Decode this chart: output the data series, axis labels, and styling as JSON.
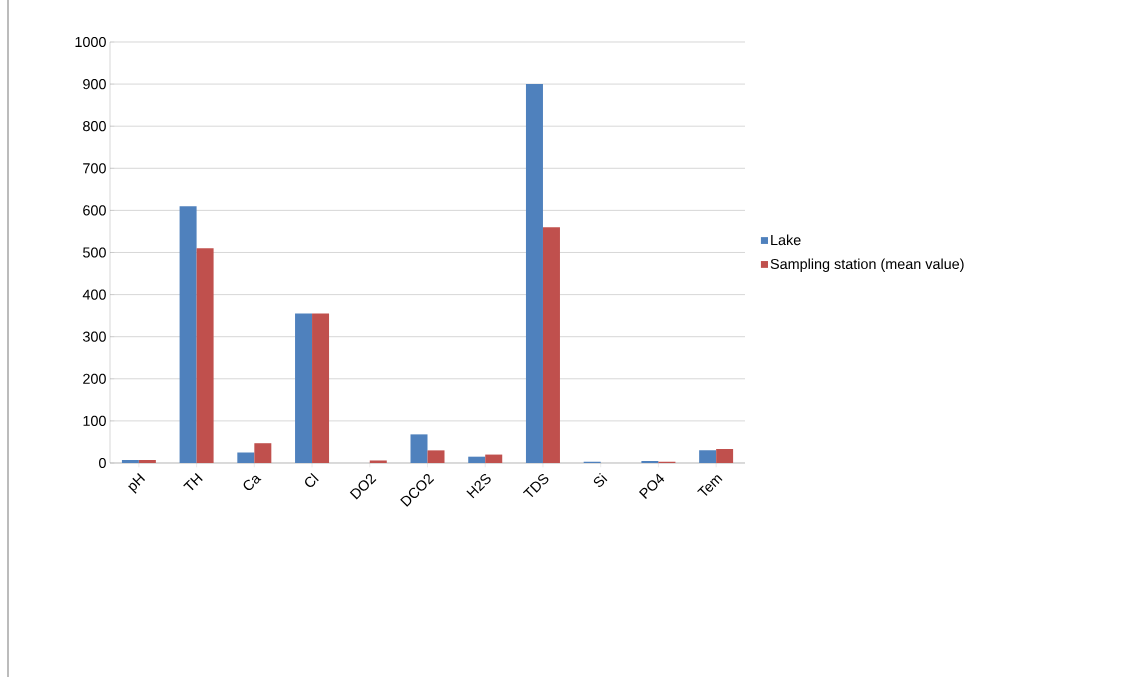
{
  "chart_data": {
    "type": "bar",
    "categories": [
      "pH",
      "TH",
      "Ca",
      "Cl",
      "DO2",
      "DCO2",
      "H2S",
      "TDS",
      "Si",
      "PO4",
      "Tem"
    ],
    "series": [
      {
        "name": "Lake",
        "color": "#4f81bd",
        "values": [
          7,
          610,
          25,
          355,
          0,
          68,
          15,
          900,
          3,
          5,
          30
        ]
      },
      {
        "name": "Sampling station (mean value)",
        "color": "#c0504d",
        "values": [
          7,
          510,
          47,
          355,
          6,
          30,
          20,
          560,
          null,
          3,
          33
        ]
      }
    ],
    "ylim": [
      0,
      1000
    ],
    "yticks": [
      0,
      100,
      200,
      300,
      400,
      500,
      600,
      700,
      800,
      900,
      1000
    ],
    "grid": "y",
    "legend": "right"
  }
}
